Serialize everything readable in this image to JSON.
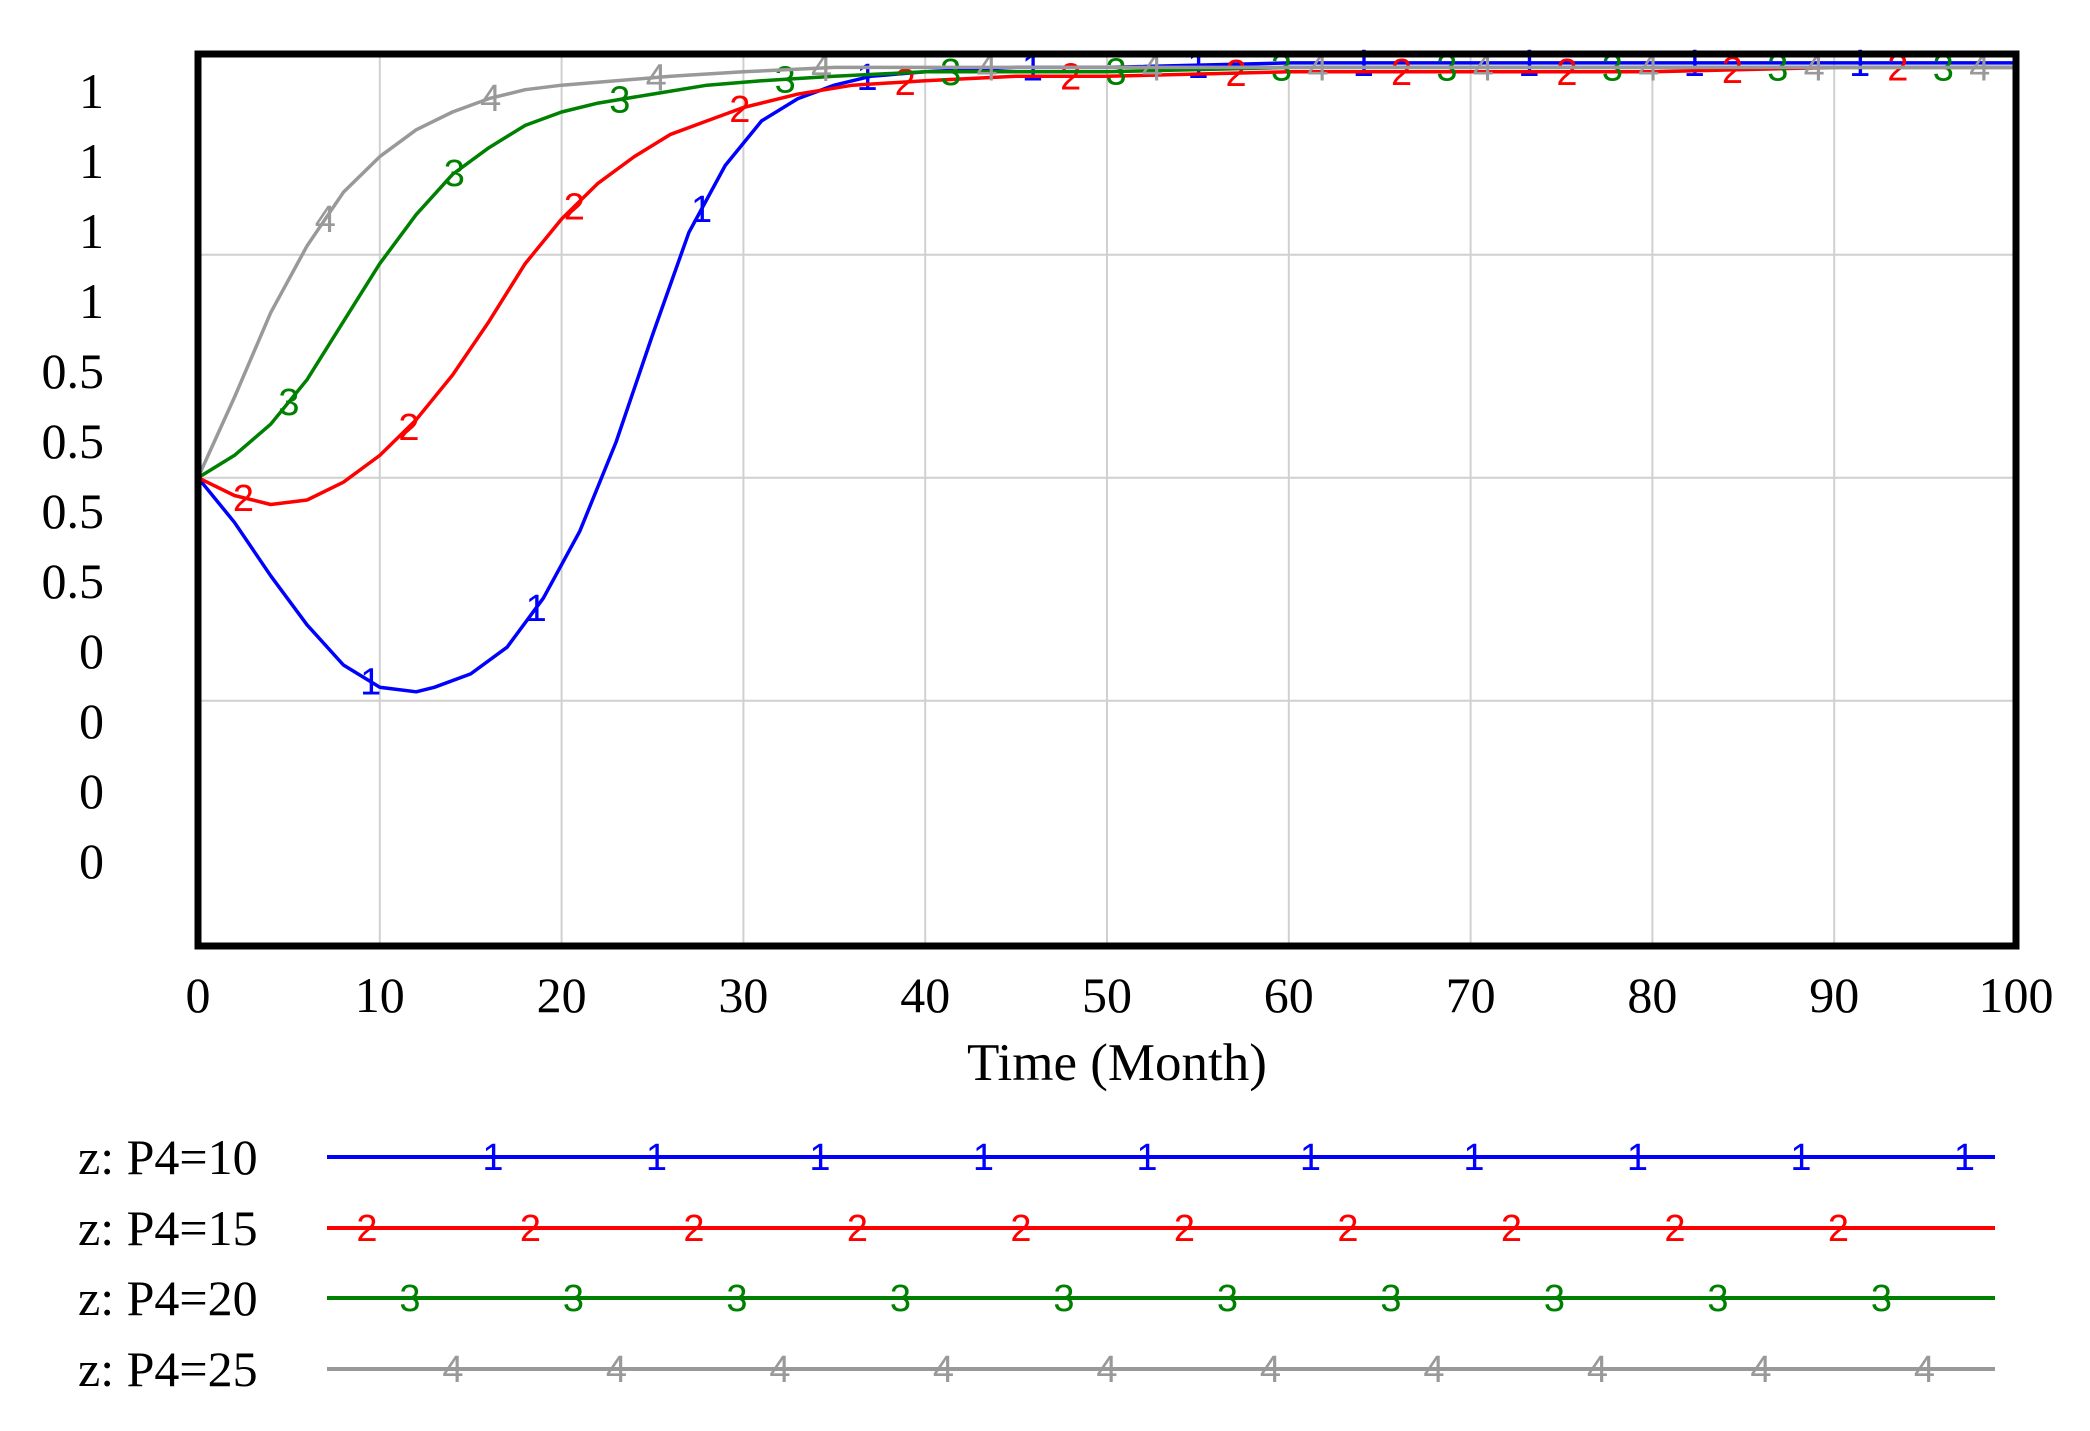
{
  "chart_data": {
    "type": "line",
    "title": "",
    "xlabel": "Time (Month)",
    "ylabel": "",
    "xlim": [
      0,
      100
    ],
    "ylim": [
      -0.55,
      1.45
    ],
    "grid": true,
    "x_ticks": [
      "0",
      "10",
      "20",
      "30",
      "40",
      "50",
      "60",
      "70",
      "80",
      "90",
      "100"
    ],
    "y_tick_labels": [
      "1",
      "1",
      "1",
      "1",
      "0.5",
      "0.5",
      "0.5",
      "0.5",
      "0",
      "0",
      "0",
      "0"
    ],
    "legend_position": "bottom",
    "series": [
      {
        "name": "z: P4=10",
        "marker": "1",
        "color": "#0000ff",
        "x": [
          0,
          2,
          4,
          6,
          8,
          10,
          12,
          13,
          15,
          17,
          19,
          21,
          23,
          25,
          27,
          29,
          31,
          33,
          35,
          37,
          40,
          45,
          50,
          60,
          70,
          80,
          90,
          100
        ],
        "y": [
          0.5,
          0.4,
          0.28,
          0.17,
          0.08,
          0.03,
          0.02,
          0.03,
          0.06,
          0.12,
          0.23,
          0.38,
          0.58,
          0.82,
          1.05,
          1.2,
          1.3,
          1.35,
          1.38,
          1.4,
          1.41,
          1.42,
          1.42,
          1.43,
          1.43,
          1.43,
          1.43,
          1.43
        ]
      },
      {
        "name": "z: P4=15",
        "marker": "2",
        "color": "#ff0000",
        "x": [
          0,
          2,
          4,
          6,
          8,
          10,
          12,
          14,
          16,
          18,
          20,
          22,
          24,
          26,
          28,
          30,
          33,
          36,
          40,
          45,
          50,
          60,
          70,
          80,
          90,
          100
        ],
        "y": [
          0.5,
          0.46,
          0.44,
          0.45,
          0.49,
          0.55,
          0.63,
          0.73,
          0.85,
          0.98,
          1.08,
          1.16,
          1.22,
          1.27,
          1.3,
          1.33,
          1.36,
          1.38,
          1.39,
          1.4,
          1.4,
          1.41,
          1.41,
          1.41,
          1.42,
          1.42
        ]
      },
      {
        "name": "z: P4=20",
        "marker": "3",
        "color": "#008000",
        "x": [
          0,
          2,
          4,
          6,
          8,
          10,
          12,
          14,
          16,
          18,
          20,
          22,
          25,
          28,
          31,
          35,
          40,
          45,
          50,
          60,
          70,
          80,
          90,
          100
        ],
        "y": [
          0.5,
          0.55,
          0.62,
          0.72,
          0.85,
          0.98,
          1.09,
          1.18,
          1.24,
          1.29,
          1.32,
          1.34,
          1.36,
          1.38,
          1.39,
          1.4,
          1.41,
          1.41,
          1.41,
          1.42,
          1.42,
          1.42,
          1.42,
          1.42
        ]
      },
      {
        "name": "z: P4=25",
        "marker": "4",
        "color": "#999999",
        "x": [
          0,
          2,
          4,
          6,
          8,
          10,
          12,
          14,
          16,
          18,
          20,
          23,
          26,
          30,
          35,
          40,
          45,
          50,
          60,
          70,
          80,
          90,
          100
        ],
        "y": [
          0.5,
          0.68,
          0.87,
          1.02,
          1.14,
          1.22,
          1.28,
          1.32,
          1.35,
          1.37,
          1.38,
          1.39,
          1.4,
          1.41,
          1.42,
          1.42,
          1.42,
          1.42,
          1.42,
          1.42,
          1.42,
          1.42,
          1.42
        ]
      }
    ]
  }
}
